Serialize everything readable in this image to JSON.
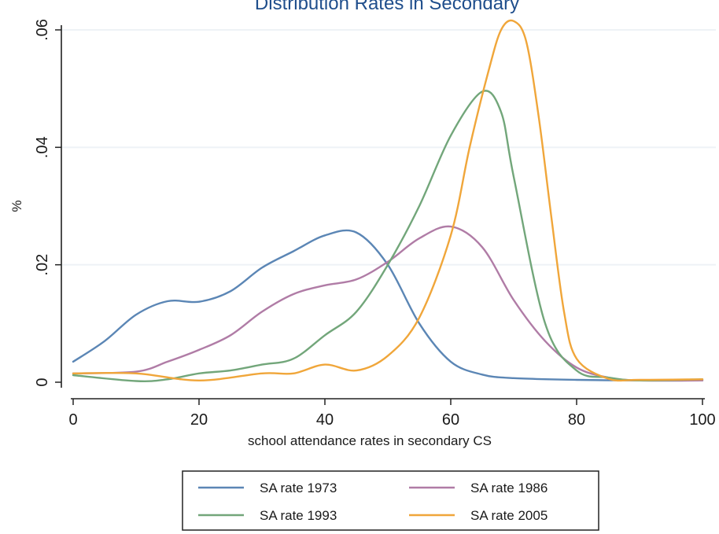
{
  "chart_data": {
    "type": "line",
    "title": "Distribution Rates in Secondary",
    "xlabel": "school attendance rates in secondary CS",
    "ylabel": "%",
    "xlim": [
      0,
      100
    ],
    "ylim": [
      0,
      0.06
    ],
    "xticks": [
      0,
      20,
      40,
      60,
      80,
      100
    ],
    "yticks": [
      0,
      0.02,
      0.04,
      0.06
    ],
    "xtick_labels": [
      "0",
      "20",
      "40",
      "60",
      "80",
      "100"
    ],
    "ytick_labels": [
      "0",
      ".02",
      ".04",
      ".06"
    ],
    "grid": true,
    "legend_position": "bottom",
    "series": [
      {
        "name": "SA rate 1973",
        "color": "#5b86b5",
        "x": [
          0,
          5,
          10,
          15,
          20,
          25,
          30,
          35,
          40,
          45,
          50,
          55,
          60,
          65,
          70,
          80,
          90,
          100
        ],
        "y": [
          0.0035,
          0.007,
          0.0115,
          0.0138,
          0.0137,
          0.0155,
          0.0195,
          0.0223,
          0.025,
          0.0255,
          0.02,
          0.01,
          0.0035,
          0.0013,
          0.0007,
          0.0004,
          0.0003,
          0.0003
        ]
      },
      {
        "name": "SA rate 1986",
        "color": "#b07ca6",
        "x": [
          0,
          10,
          15,
          20,
          25,
          30,
          35,
          40,
          45,
          50,
          55,
          60,
          65,
          70,
          75,
          80,
          85,
          90,
          100
        ],
        "y": [
          0.0015,
          0.0018,
          0.0035,
          0.0055,
          0.008,
          0.012,
          0.015,
          0.0165,
          0.0175,
          0.0205,
          0.0245,
          0.0265,
          0.023,
          0.014,
          0.007,
          0.0025,
          0.0008,
          0.0003,
          0.0003
        ]
      },
      {
        "name": "SA rate 1993",
        "color": "#72a67a",
        "x": [
          0,
          10,
          15,
          20,
          25,
          30,
          35,
          40,
          45,
          50,
          55,
          60,
          65,
          68,
          70,
          75,
          80,
          85,
          90,
          100
        ],
        "y": [
          0.0012,
          0.0002,
          0.0005,
          0.0015,
          0.002,
          0.003,
          0.004,
          0.008,
          0.012,
          0.02,
          0.03,
          0.042,
          0.0495,
          0.046,
          0.035,
          0.01,
          0.002,
          0.0008,
          0.0003,
          0.0005
        ]
      },
      {
        "name": "SA rate 2005",
        "color": "#f0a63a",
        "x": [
          0,
          10,
          20,
          30,
          35,
          40,
          45,
          50,
          55,
          60,
          63,
          66,
          68,
          70,
          72,
          74,
          76,
          78,
          80,
          85,
          90,
          100
        ],
        "y": [
          0.0015,
          0.0015,
          0.0003,
          0.0015,
          0.0015,
          0.003,
          0.002,
          0.0045,
          0.011,
          0.025,
          0.04,
          0.053,
          0.06,
          0.0615,
          0.058,
          0.045,
          0.028,
          0.012,
          0.004,
          0.0006,
          0.0004,
          0.0005
        ]
      }
    ]
  }
}
